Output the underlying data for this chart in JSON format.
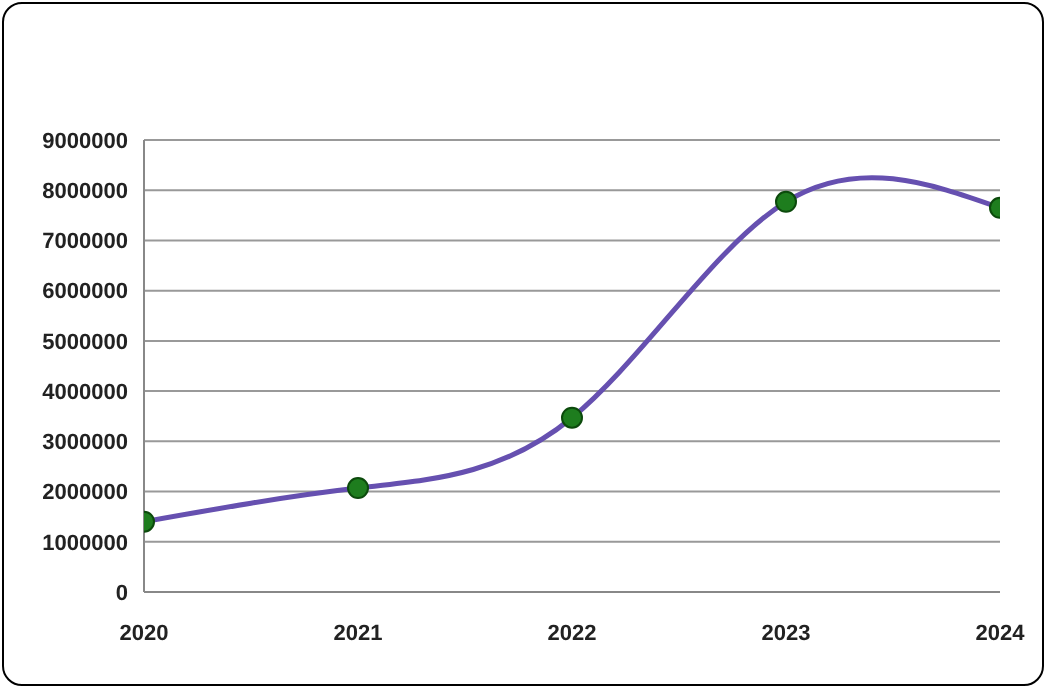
{
  "chart_data": {
    "type": "line",
    "x": [
      2020,
      2021,
      2022,
      2023,
      2024
    ],
    "series": [
      {
        "color": "#6650b0",
        "values": [
          1400000,
          2070000,
          3470000,
          7770000,
          7650000
        ]
      }
    ],
    "xlim": [
      2020,
      2024
    ],
    "xticks": [
      2020,
      2021,
      2022,
      2023,
      2024
    ],
    "ylim": [
      0,
      9000000
    ],
    "yticks": [
      0,
      1000000,
      2000000,
      3000000,
      4000000,
      5000000,
      6000000,
      7000000,
      8000000,
      9000000
    ],
    "grid": "y",
    "marker": "circle",
    "line_style": "solid",
    "legend": false
  }
}
